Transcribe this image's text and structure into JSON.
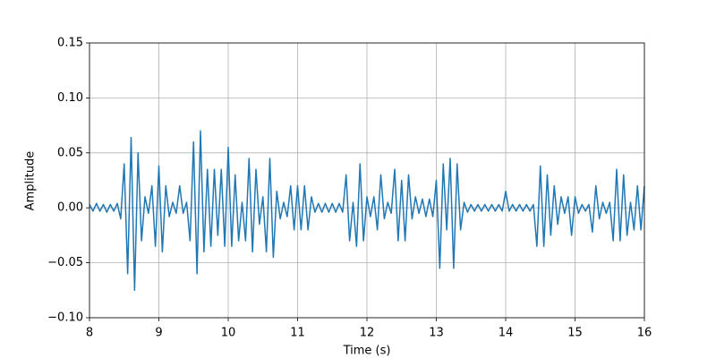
{
  "chart_data": {
    "type": "line",
    "x_label": "Time (s)",
    "y_label": "Amplitude",
    "color": "#1f77b4",
    "grid": true,
    "xlim": [
      8,
      16
    ],
    "xticks": [
      8,
      9,
      10,
      11,
      12,
      13,
      14,
      15,
      16
    ],
    "ylim": [
      -0.1,
      0.15
    ],
    "yticks": [
      {
        "value": -0.1,
        "label": "−0.10"
      },
      {
        "value": -0.05,
        "label": "−0.05"
      },
      {
        "value": 0,
        "label": "0.00"
      },
      {
        "value": 0.05,
        "label": "0.05"
      },
      {
        "value": 0.1,
        "label": "0.10"
      },
      {
        "value": 0.15,
        "label": "0.15"
      }
    ],
    "x": [
      8.0,
      8.05,
      8.1,
      8.15,
      8.2,
      8.25,
      8.3,
      8.35,
      8.4,
      8.45,
      8.5,
      8.55,
      8.6,
      8.65,
      8.7,
      8.75,
      8.8,
      8.85,
      8.9,
      8.95,
      9.0,
      9.05,
      9.1,
      9.15,
      9.2,
      9.25,
      9.3,
      9.35,
      9.4,
      9.45,
      9.5,
      9.55,
      9.6,
      9.65,
      9.7,
      9.75,
      9.8,
      9.85,
      9.9,
      9.95,
      10.0,
      10.05,
      10.1,
      10.15,
      10.2,
      10.25,
      10.3,
      10.35,
      10.4,
      10.45,
      10.5,
      10.55,
      10.6,
      10.65,
      10.7,
      10.75,
      10.8,
      10.85,
      10.9,
      10.95,
      11.0,
      11.05,
      11.1,
      11.15,
      11.2,
      11.25,
      11.3,
      11.35,
      11.4,
      11.45,
      11.5,
      11.55,
      11.6,
      11.65,
      11.7,
      11.75,
      11.8,
      11.85,
      11.9,
      11.95,
      12.0,
      12.05,
      12.1,
      12.15,
      12.2,
      12.25,
      12.3,
      12.35,
      12.4,
      12.45,
      12.5,
      12.55,
      12.6,
      12.65,
      12.7,
      12.75,
      12.8,
      12.85,
      12.9,
      12.95,
      13.0,
      13.05,
      13.1,
      13.15,
      13.2,
      13.25,
      13.3,
      13.35,
      13.4,
      13.45,
      13.5,
      13.55,
      13.6,
      13.65,
      13.7,
      13.75,
      13.8,
      13.85,
      13.9,
      13.95,
      14.0,
      14.05,
      14.1,
      14.15,
      14.2,
      14.25,
      14.3,
      14.35,
      14.4,
      14.45,
      14.5,
      14.55,
      14.6,
      14.65,
      14.7,
      14.75,
      14.8,
      14.85,
      14.9,
      14.95,
      15.0,
      15.05,
      15.1,
      15.15,
      15.2,
      15.25,
      15.3,
      15.35,
      15.4,
      15.45,
      15.5,
      15.55,
      15.6,
      15.65,
      15.7,
      15.75,
      15.8,
      15.85,
      15.9,
      15.95,
      16.0
    ],
    "values": [
      0.003,
      -0.003,
      0.004,
      -0.003,
      0.003,
      -0.004,
      0.003,
      -0.003,
      0.004,
      -0.01,
      0.04,
      -0.06,
      0.064,
      -0.075,
      0.05,
      -0.03,
      0.01,
      -0.005,
      0.02,
      -0.035,
      0.038,
      -0.04,
      0.02,
      -0.008,
      0.005,
      -0.005,
      0.02,
      -0.005,
      0.005,
      -0.03,
      0.06,
      -0.06,
      0.07,
      -0.04,
      0.035,
      -0.035,
      0.035,
      -0.025,
      0.035,
      -0.035,
      0.055,
      -0.035,
      0.03,
      -0.03,
      0.005,
      -0.03,
      0.045,
      -0.04,
      0.035,
      -0.015,
      0.01,
      -0.04,
      0.045,
      -0.045,
      0.015,
      -0.01,
      0.005,
      -0.008,
      0.02,
      -0.02,
      0.02,
      -0.02,
      0.02,
      -0.02,
      0.01,
      -0.004,
      0.004,
      -0.004,
      0.004,
      -0.004,
      0.004,
      -0.004,
      0.004,
      -0.004,
      0.03,
      -0.03,
      0.005,
      -0.035,
      0.04,
      -0.03,
      0.01,
      -0.008,
      0.01,
      -0.02,
      0.03,
      -0.01,
      0.005,
      -0.005,
      0.035,
      -0.03,
      0.025,
      -0.03,
      0.03,
      -0.01,
      0.01,
      -0.005,
      0.008,
      -0.008,
      0.008,
      -0.008,
      0.025,
      -0.055,
      0.04,
      -0.02,
      0.045,
      -0.055,
      0.04,
      -0.02,
      0.005,
      -0.004,
      0.003,
      -0.003,
      0.003,
      -0.003,
      0.003,
      -0.003,
      0.003,
      -0.003,
      0.003,
      -0.003,
      0.015,
      -0.003,
      0.003,
      -0.003,
      0.003,
      -0.003,
      0.003,
      -0.003,
      0.003,
      -0.035,
      0.038,
      -0.035,
      0.03,
      -0.025,
      0.02,
      -0.015,
      0.01,
      -0.005,
      0.01,
      -0.025,
      0.01,
      -0.005,
      0.003,
      -0.003,
      0.003,
      -0.022,
      0.02,
      -0.01,
      0.005,
      -0.005,
      0.005,
      -0.03,
      0.035,
      -0.03,
      0.03,
      -0.025,
      0.005,
      -0.02,
      0.02,
      -0.02,
      0.02
    ]
  }
}
